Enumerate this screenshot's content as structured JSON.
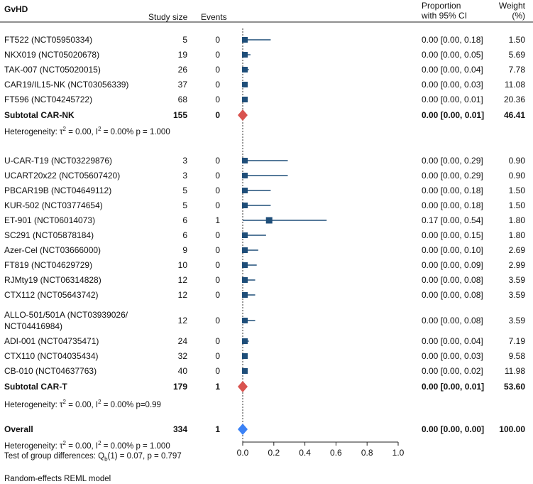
{
  "header": {
    "col_label": "GvHD",
    "col_size": "Study size",
    "col_events": "Events",
    "col_ci": "Proportion\nwith 95% CI",
    "col_ci_l1": "Proportion",
    "col_ci_l2": "with 95% CI",
    "col_weight_l1": "Weight",
    "col_weight_l2": "(%)"
  },
  "groups": [
    {
      "subtotal_label": "Subtotal CAR-NK",
      "subtotal_size": "155",
      "subtotal_events": "0",
      "subtotal_ci": "0.00 [0.00, 0.01]",
      "subtotal_weight": "46.41",
      "heterogeneity_prefix": "Heterogeneity: τ",
      "heterogeneity_mid": " = 0.00, I",
      "heterogeneity_suffix": " = 0.00%  p = 1.000"
    },
    {
      "subtotal_label": "Subtotal CAR-T",
      "subtotal_size": "179",
      "subtotal_events": "1",
      "subtotal_ci": "0.00 [0.00, 0.01]",
      "subtotal_weight": "53.60",
      "heterogeneity_prefix": "Heterogeneity: τ",
      "heterogeneity_mid": " = 0.00, I",
      "heterogeneity_suffix": " = 0.00%    p=0.99"
    }
  ],
  "overall": {
    "label": "Overall",
    "size": "334",
    "events": "1",
    "ci": "0.00 [0.00, 0.00]",
    "weight": "100.00",
    "heterogeneity_prefix": "Heterogeneity: τ",
    "heterogeneity_mid": " = 0.00, I",
    "heterogeneity_suffix": " = 0.00%    p = 1.000",
    "test_prefix": "Test of group differences: Q",
    "test_sub": "b",
    "test_suffix": "(1) = 0.07, p = 0.797"
  },
  "footnote": "Random-effects REML model",
  "sup2": "2",
  "chart_data": {
    "type": "forest",
    "title": "GvHD",
    "xlim": [
      0,
      1
    ],
    "xticks": [
      0.0,
      0.2,
      0.4,
      0.6,
      0.8,
      1.0
    ],
    "xtick_labels": [
      "0.0",
      "0.2",
      "0.4",
      "0.6",
      "0.8",
      "1.0"
    ],
    "studies": [
      {
        "label": "FT522 (NCT05950334)",
        "size": "5",
        "events": "0",
        "est": 0.0,
        "lo": 0.0,
        "hi": 0.18,
        "ci_text": "0.00 [0.00, 0.18]",
        "weight": "1.50",
        "w": 1.5,
        "group": 0
      },
      {
        "label": "NKX019 (NCT05020678)",
        "size": "19",
        "events": "0",
        "est": 0.0,
        "lo": 0.0,
        "hi": 0.05,
        "ci_text": "0.00 [0.00, 0.05]",
        "weight": "5.69",
        "w": 5.69,
        "group": 0
      },
      {
        "label": "TAK-007 (NCT05020015)",
        "size": "26",
        "events": "0",
        "est": 0.0,
        "lo": 0.0,
        "hi": 0.04,
        "ci_text": "0.00 [0.00, 0.04]",
        "weight": "7.78",
        "w": 7.78,
        "group": 0
      },
      {
        "label": " CAR19/IL15-NK (NCT03056339)",
        "size": "37",
        "events": "0",
        "est": 0.0,
        "lo": 0.0,
        "hi": 0.03,
        "ci_text": "0.00 [0.00, 0.03]",
        "weight": "11.08",
        "w": 11.08,
        "group": 0
      },
      {
        "label": "FT596 (NCT04245722)",
        "size": "68",
        "events": "0",
        "est": 0.0,
        "lo": 0.0,
        "hi": 0.01,
        "ci_text": "0.00 [0.00, 0.01]",
        "weight": "20.36",
        "w": 20.36,
        "group": 0
      },
      {
        "label": "U-CAR-T19 (NCT03229876)",
        "size": "3",
        "events": "0",
        "est": 0.0,
        "lo": 0.0,
        "hi": 0.29,
        "ci_text": "0.00 [0.00, 0.29]",
        "weight": "0.90",
        "w": 0.9,
        "group": 1
      },
      {
        "label": "UCART20x22 (NCT05607420)",
        "size": "3",
        "events": "0",
        "est": 0.0,
        "lo": 0.0,
        "hi": 0.29,
        "ci_text": "0.00 [0.00, 0.29]",
        "weight": "0.90",
        "w": 0.9,
        "group": 1
      },
      {
        "label": "PBCAR19B (NCT04649112)",
        "size": "5",
        "events": "0",
        "est": 0.0,
        "lo": 0.0,
        "hi": 0.18,
        "ci_text": "0.00 [0.00, 0.18]",
        "weight": "1.50",
        "w": 1.5,
        "group": 1
      },
      {
        "label": "KUR-502 (NCT03774654)",
        "size": "5",
        "events": "0",
        "est": 0.0,
        "lo": 0.0,
        "hi": 0.18,
        "ci_text": "0.00 [0.00, 0.18]",
        "weight": "1.50",
        "w": 1.5,
        "group": 1
      },
      {
        "label": "ET-901 (NCT06014073)",
        "size": "6",
        "events": "1",
        "est": 0.17,
        "lo": 0.0,
        "hi": 0.54,
        "ci_text": "0.17 [0.00, 0.54]",
        "weight": "1.80",
        "w": 1.8,
        "group": 1
      },
      {
        "label": "SC291 (NCT05878184)",
        "size": "6",
        "events": "0",
        "est": 0.0,
        "lo": 0.0,
        "hi": 0.15,
        "ci_text": "0.00 [0.00, 0.15]",
        "weight": "1.80",
        "w": 1.8,
        "group": 1
      },
      {
        "label": "Azer-Cel (NCT03666000)",
        "size": "9",
        "events": "0",
        "est": 0.0,
        "lo": 0.0,
        "hi": 0.1,
        "ci_text": "0.00 [0.00, 0.10]",
        "weight": "2.69",
        "w": 2.69,
        "group": 1
      },
      {
        "label": "FT819 (NCT04629729)",
        "size": "10",
        "events": "0",
        "est": 0.0,
        "lo": 0.0,
        "hi": 0.09,
        "ci_text": "0.00 [0.00, 0.09]",
        "weight": "2.99",
        "w": 2.99,
        "group": 1
      },
      {
        "label": "RJMty19 (NCT06314828)",
        "size": "12",
        "events": "0",
        "est": 0.0,
        "lo": 0.0,
        "hi": 0.08,
        "ci_text": "0.00 [0.00, 0.08]",
        "weight": "3.59",
        "w": 3.59,
        "group": 1
      },
      {
        "label": "CTX112 (NCT05643742)",
        "size": "12",
        "events": "0",
        "est": 0.0,
        "lo": 0.0,
        "hi": 0.08,
        "ci_text": "0.00 [0.00, 0.08]",
        "weight": "3.59",
        "w": 3.59,
        "group": 1
      },
      {
        "label": "ALLO-501/501A (NCT03939026/",
        "label2": "NCT04416984)",
        "size": "12",
        "events": "0",
        "est": 0.0,
        "lo": 0.0,
        "hi": 0.08,
        "ci_text": "0.00 [0.00, 0.08]",
        "weight": "3.59",
        "w": 3.59,
        "group": 1
      },
      {
        "label": "ADI-001 (NCT04735471)",
        "size": "24",
        "events": "0",
        "est": 0.0,
        "lo": 0.0,
        "hi": 0.04,
        "ci_text": "0.00 [0.00, 0.04]",
        "weight": "7.19",
        "w": 7.19,
        "group": 1
      },
      {
        "label": "CTX110 (NCT04035434)",
        "size": "32",
        "events": "0",
        "est": 0.0,
        "lo": 0.0,
        "hi": 0.03,
        "ci_text": "0.00 [0.00, 0.03]",
        "weight": "9.58",
        "w": 9.58,
        "group": 1
      },
      {
        "label": "CB-010 (NCT04637763)",
        "size": "40",
        "events": "0",
        "est": 0.0,
        "lo": 0.0,
        "hi": 0.02,
        "ci_text": "0.00 [0.00, 0.02]",
        "weight": "11.98",
        "w": 11.98,
        "group": 1
      }
    ],
    "subtotals": [
      {
        "label": "Subtotal CAR-NK",
        "est": 0.0,
        "lo": 0.0,
        "hi": 0.01,
        "color": "#d9534f"
      },
      {
        "label": "Subtotal CAR-T",
        "est": 0.0,
        "lo": 0.0,
        "hi": 0.01,
        "color": "#d9534f"
      }
    ],
    "overall": {
      "label": "Overall",
      "est": 0.0,
      "lo": 0.0,
      "hi": 0.0,
      "color": "#3b82f6"
    },
    "marker_color": "#1f4e79",
    "line_color": "#1f4e79"
  }
}
